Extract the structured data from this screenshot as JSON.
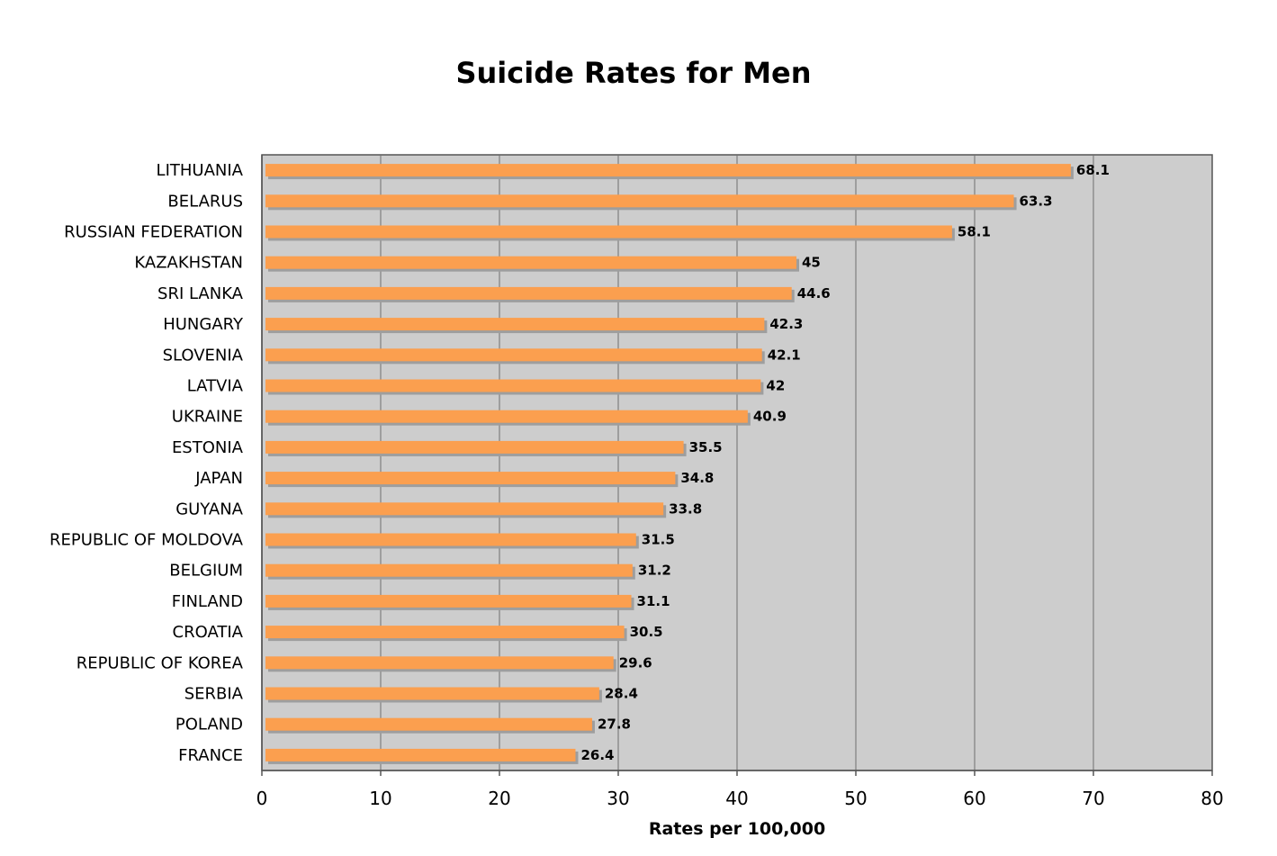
{
  "chart_data": {
    "type": "bar",
    "orientation": "horizontal",
    "title": "Suicide Rates for Men",
    "xlabel": "Rates per 100,000",
    "ylabel": "",
    "xlim": [
      0,
      80
    ],
    "xticks": [
      0,
      10,
      20,
      30,
      40,
      50,
      60,
      70,
      80
    ],
    "grid": "vertical",
    "legend": "none",
    "categories": [
      "LITHUANIA",
      "BELARUS",
      "RUSSIAN FEDERATION",
      "KAZAKHSTAN",
      "SRI LANKA",
      "HUNGARY",
      "SLOVENIA",
      "LATVIA",
      "UKRAINE",
      "ESTONIA",
      "JAPAN",
      "GUYANA",
      "REPUBLIC OF MOLDOVA",
      "BELGIUM",
      "FINLAND",
      "CROATIA",
      "REPUBLIC OF KOREA",
      "SERBIA",
      "POLAND",
      "FRANCE"
    ],
    "values": [
      68.1,
      63.3,
      58.1,
      45,
      44.6,
      42.3,
      42.1,
      42,
      40.9,
      35.5,
      34.8,
      33.8,
      31.5,
      31.2,
      31.1,
      30.5,
      29.6,
      28.4,
      27.8,
      26.4
    ],
    "data_labels": [
      "68.1",
      "63.3",
      "58.1",
      "45",
      "44.6",
      "42.3",
      "42.1",
      "42",
      "40.9",
      "35.5",
      "34.8",
      "33.8",
      "31.5",
      "31.2",
      "31.1",
      "30.5",
      "29.6",
      "28.4",
      "27.8",
      "26.4"
    ]
  },
  "colors": {
    "bar": "#FB9F4F",
    "bar_shadow": "#9E9E9E",
    "plot_background": "#CDCDCD",
    "gridline": "#6E6E6E",
    "axis": "#555555"
  }
}
